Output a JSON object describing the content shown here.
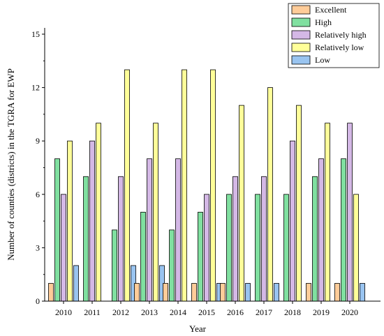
{
  "chart_data": {
    "type": "bar",
    "title": "",
    "xlabel": "Year",
    "ylabel": "Number of counties (districts) in the TGRA for EWP",
    "ylim": [
      0,
      15
    ],
    "yticks": [
      0,
      3,
      6,
      9,
      12,
      15
    ],
    "grid": false,
    "legend_position": "top-right",
    "categories": [
      "2010",
      "2011",
      "2012",
      "2013",
      "2014",
      "2015",
      "2016",
      "2017",
      "2018",
      "2019",
      "2020"
    ],
    "series": [
      {
        "name": "Excellent",
        "color": "#ffcc99",
        "values": [
          1,
          0,
          0,
          1,
          1,
          1,
          1,
          0,
          0,
          1,
          1
        ]
      },
      {
        "name": "High",
        "color": "#80e0a0",
        "values": [
          8,
          7,
          4,
          5,
          4,
          5,
          6,
          6,
          6,
          7,
          8
        ]
      },
      {
        "name": "Relatively high",
        "color": "#d4b8e6",
        "values": [
          6,
          9,
          7,
          8,
          8,
          6,
          7,
          7,
          9,
          8,
          10
        ]
      },
      {
        "name": "Relatively low",
        "color": "#ffff99",
        "values": [
          9,
          10,
          13,
          10,
          13,
          13,
          11,
          12,
          11,
          10,
          6
        ]
      },
      {
        "name": "Low",
        "color": "#99c4f0",
        "values": [
          2,
          0,
          2,
          2,
          0,
          1,
          1,
          1,
          0,
          0,
          1
        ]
      }
    ]
  }
}
